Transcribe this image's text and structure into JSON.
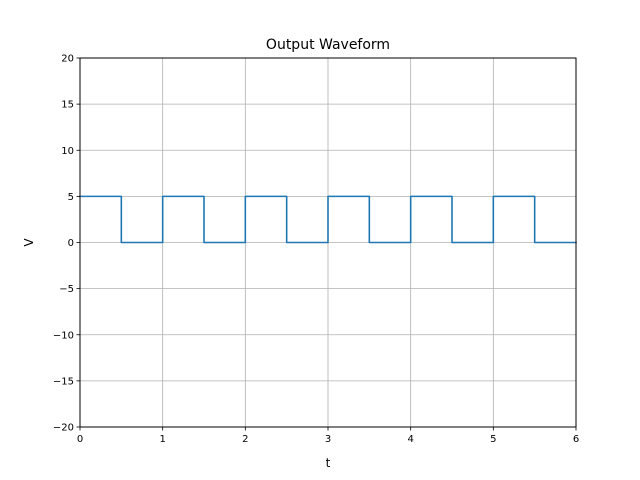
{
  "chart_data": {
    "type": "line",
    "title": "Output Waveform",
    "xlabel": "t",
    "ylabel": "V",
    "xlim": [
      0,
      6
    ],
    "ylim": [
      -20,
      20
    ],
    "xticks": [
      0,
      1,
      2,
      3,
      4,
      5,
      6
    ],
    "yticks": [
      -20,
      -15,
      -10,
      -5,
      0,
      5,
      10,
      15,
      20
    ],
    "grid": true,
    "series": [
      {
        "color": "#1f77b4",
        "x": [
          0,
          0.5,
          0.5,
          1,
          1,
          1.5,
          1.5,
          2,
          2,
          2.5,
          2.5,
          3,
          3,
          3.5,
          3.5,
          4,
          4,
          4.5,
          4.5,
          5,
          5,
          5.5,
          5.5,
          6
        ],
        "y": [
          5,
          5,
          0,
          0,
          5,
          5,
          0,
          0,
          5,
          5,
          0,
          0,
          5,
          5,
          0,
          0,
          5,
          5,
          0,
          0,
          5,
          5,
          0,
          0
        ]
      }
    ]
  }
}
